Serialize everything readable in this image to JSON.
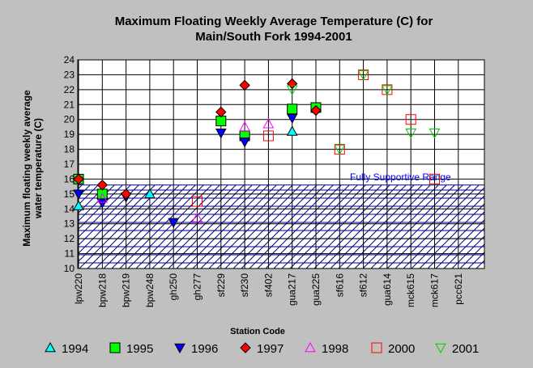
{
  "chart_data": {
    "type": "scatter",
    "title_line1": "Maximum Floating Weekly Average Temperature (C) for",
    "title_line2": "Main/South Fork 1994-2001",
    "xlabel": "Station Code",
    "ylabel_line1": "Maximum floating weekly average",
    "ylabel_line2": "water temperature (C)",
    "ylim": [
      10,
      24
    ],
    "yticks": [
      10,
      11,
      12,
      13,
      14,
      15,
      16,
      17,
      18,
      19,
      20,
      21,
      22,
      23,
      24
    ],
    "grid": true,
    "categories": [
      "lpw220",
      "bpw218",
      "bpw219",
      "bpw248",
      "gh250",
      "gh277",
      "sf229",
      "sf230",
      "sf402",
      "gua217",
      "gua225",
      "sf616",
      "sf612",
      "gua614",
      "mck615",
      "mck617",
      "pcc621"
    ],
    "range_band": {
      "label": "Fully Supportive Range",
      "from": 10,
      "to": 15.6
    },
    "legend_position": "bottom",
    "series": [
      {
        "name": "1994",
        "marker": "triangle-up",
        "color": "#00ffff",
        "filled": true,
        "values": [
          14.2,
          null,
          null,
          15.0,
          null,
          null,
          null,
          null,
          null,
          19.2,
          null,
          null,
          null,
          null,
          null,
          null,
          null
        ]
      },
      {
        "name": "1995",
        "marker": "square",
        "color": "#00ff00",
        "filled": true,
        "values": [
          16.0,
          15.0,
          null,
          null,
          null,
          null,
          19.9,
          18.9,
          null,
          20.7,
          20.8,
          null,
          null,
          null,
          null,
          null,
          null
        ]
      },
      {
        "name": "1996",
        "marker": "triangle-down",
        "color": "#0000ff",
        "filled": true,
        "values": [
          15.0,
          14.4,
          14.8,
          null,
          13.1,
          null,
          19.1,
          18.5,
          null,
          20.1,
          null,
          null,
          null,
          null,
          null,
          null,
          null
        ]
      },
      {
        "name": "1997",
        "marker": "diamond",
        "color": "#ff0000",
        "filled": true,
        "values": [
          16.0,
          15.6,
          15.0,
          null,
          null,
          null,
          20.5,
          22.3,
          null,
          22.4,
          20.6,
          null,
          null,
          null,
          null,
          null,
          null
        ]
      },
      {
        "name": "1998",
        "marker": "triangle-up",
        "color": "#ff00ff",
        "filled": false,
        "values": [
          null,
          14.7,
          null,
          null,
          null,
          13.4,
          null,
          19.5,
          19.7,
          null,
          null,
          null,
          null,
          null,
          null,
          null,
          null
        ]
      },
      {
        "name": "2000",
        "marker": "square",
        "color": "#ff0000",
        "filled": false,
        "values": [
          null,
          null,
          null,
          null,
          null,
          14.5,
          null,
          null,
          18.9,
          null,
          null,
          18.0,
          23.0,
          22.0,
          20.0,
          16.0,
          null
        ]
      },
      {
        "name": "2001",
        "marker": "triangle-down",
        "color": "#00cc00",
        "filled": false,
        "values": [
          null,
          null,
          null,
          null,
          null,
          null,
          null,
          null,
          null,
          22.0,
          null,
          18.0,
          23.0,
          22.0,
          19.1,
          19.1,
          null
        ]
      }
    ]
  }
}
